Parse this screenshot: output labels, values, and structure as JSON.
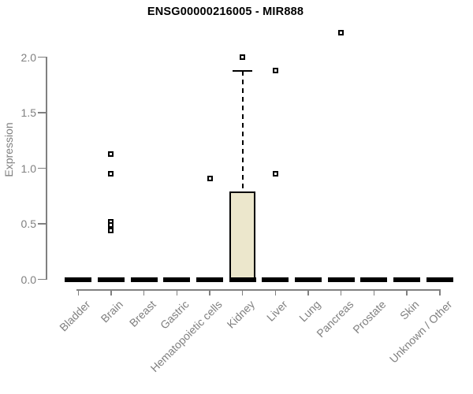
{
  "colors": {
    "box_fill": "#ECE7CC",
    "box_border": "#000000",
    "axis": "#808080",
    "title": "#000000"
  },
  "chart_data": {
    "type": "boxplot",
    "title": "ENSG00000216005 - MIR888",
    "xlabel": "",
    "ylabel": "Expression",
    "ylim": [
      0,
      2.25
    ],
    "y_ticks": [
      0.0,
      0.5,
      1.0,
      1.5,
      2.0
    ],
    "y_tick_labels": [
      "0.0",
      "0.5",
      "1.0",
      "1.5",
      "2.0"
    ],
    "grid": false,
    "legend": false,
    "categories": [
      "Bladder",
      "Brain",
      "Breast",
      "Gastric",
      "Hematopoietic cells",
      "Kidney",
      "Liver",
      "Lung",
      "Pancreas",
      "Prostate",
      "Skin",
      "Unknown / Other"
    ],
    "series": [
      {
        "name": "Bladder",
        "q1": 0,
        "median": 0,
        "q3": 0,
        "whisker_low": 0,
        "whisker_high": 0,
        "outliers": []
      },
      {
        "name": "Brain",
        "q1": 0,
        "median": 0,
        "q3": 0,
        "whisker_low": 0,
        "whisker_high": 0,
        "outliers": [
          1.13,
          0.95,
          0.52,
          0.49,
          0.44
        ]
      },
      {
        "name": "Breast",
        "q1": 0,
        "median": 0,
        "q3": 0,
        "whisker_low": 0,
        "whisker_high": 0,
        "outliers": []
      },
      {
        "name": "Gastric",
        "q1": 0,
        "median": 0,
        "q3": 0,
        "whisker_low": 0,
        "whisker_high": 0,
        "outliers": []
      },
      {
        "name": "Hematopoietic cells",
        "q1": 0,
        "median": 0,
        "q3": 0,
        "whisker_low": 0,
        "whisker_high": 0,
        "outliers": [
          0.91
        ]
      },
      {
        "name": "Kidney",
        "q1": 0,
        "median": 0,
        "q3": 0.79,
        "whisker_low": 0,
        "whisker_high": 1.88,
        "outliers": [
          2.0
        ]
      },
      {
        "name": "Liver",
        "q1": 0,
        "median": 0,
        "q3": 0,
        "whisker_low": 0,
        "whisker_high": 0,
        "outliers": [
          1.88,
          0.95
        ]
      },
      {
        "name": "Lung",
        "q1": 0,
        "median": 0,
        "q3": 0,
        "whisker_low": 0,
        "whisker_high": 0,
        "outliers": []
      },
      {
        "name": "Pancreas",
        "q1": 0,
        "median": 0,
        "q3": 0,
        "whisker_low": 0,
        "whisker_high": 0,
        "outliers": [
          2.22
        ]
      },
      {
        "name": "Prostate",
        "q1": 0,
        "median": 0,
        "q3": 0,
        "whisker_low": 0,
        "whisker_high": 0,
        "outliers": []
      },
      {
        "name": "Skin",
        "q1": 0,
        "median": 0,
        "q3": 0,
        "whisker_low": 0,
        "whisker_high": 0,
        "outliers": []
      },
      {
        "name": "Unknown / Other",
        "q1": 0,
        "median": 0,
        "q3": 0,
        "whisker_low": 0,
        "whisker_high": 0,
        "outliers": []
      }
    ]
  }
}
